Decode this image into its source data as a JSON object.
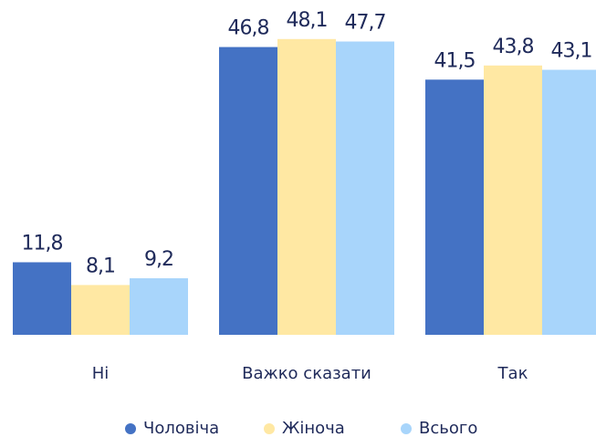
{
  "chart_data": {
    "type": "bar",
    "categories": [
      "Ні",
      "Важко сказати",
      "Так"
    ],
    "series": [
      {
        "name": "Чоловіча",
        "color": "#4472c4",
        "values": [
          11.8,
          46.8,
          41.5
        ],
        "value_labels": [
          "11,8",
          "46,8",
          "41,5"
        ]
      },
      {
        "name": "Жіноча",
        "color": "#ffe8a3",
        "values": [
          8.1,
          48.1,
          43.8
        ],
        "value_labels": [
          "8,1",
          "48,1",
          "43,8"
        ]
      },
      {
        "name": "Всього",
        "color": "#a8d5fb",
        "values": [
          9.2,
          47.7,
          43.1
        ],
        "value_labels": [
          "9,2",
          "47,7",
          "43,1"
        ]
      }
    ],
    "ylim": [
      0,
      50
    ],
    "legend": "bottom"
  }
}
